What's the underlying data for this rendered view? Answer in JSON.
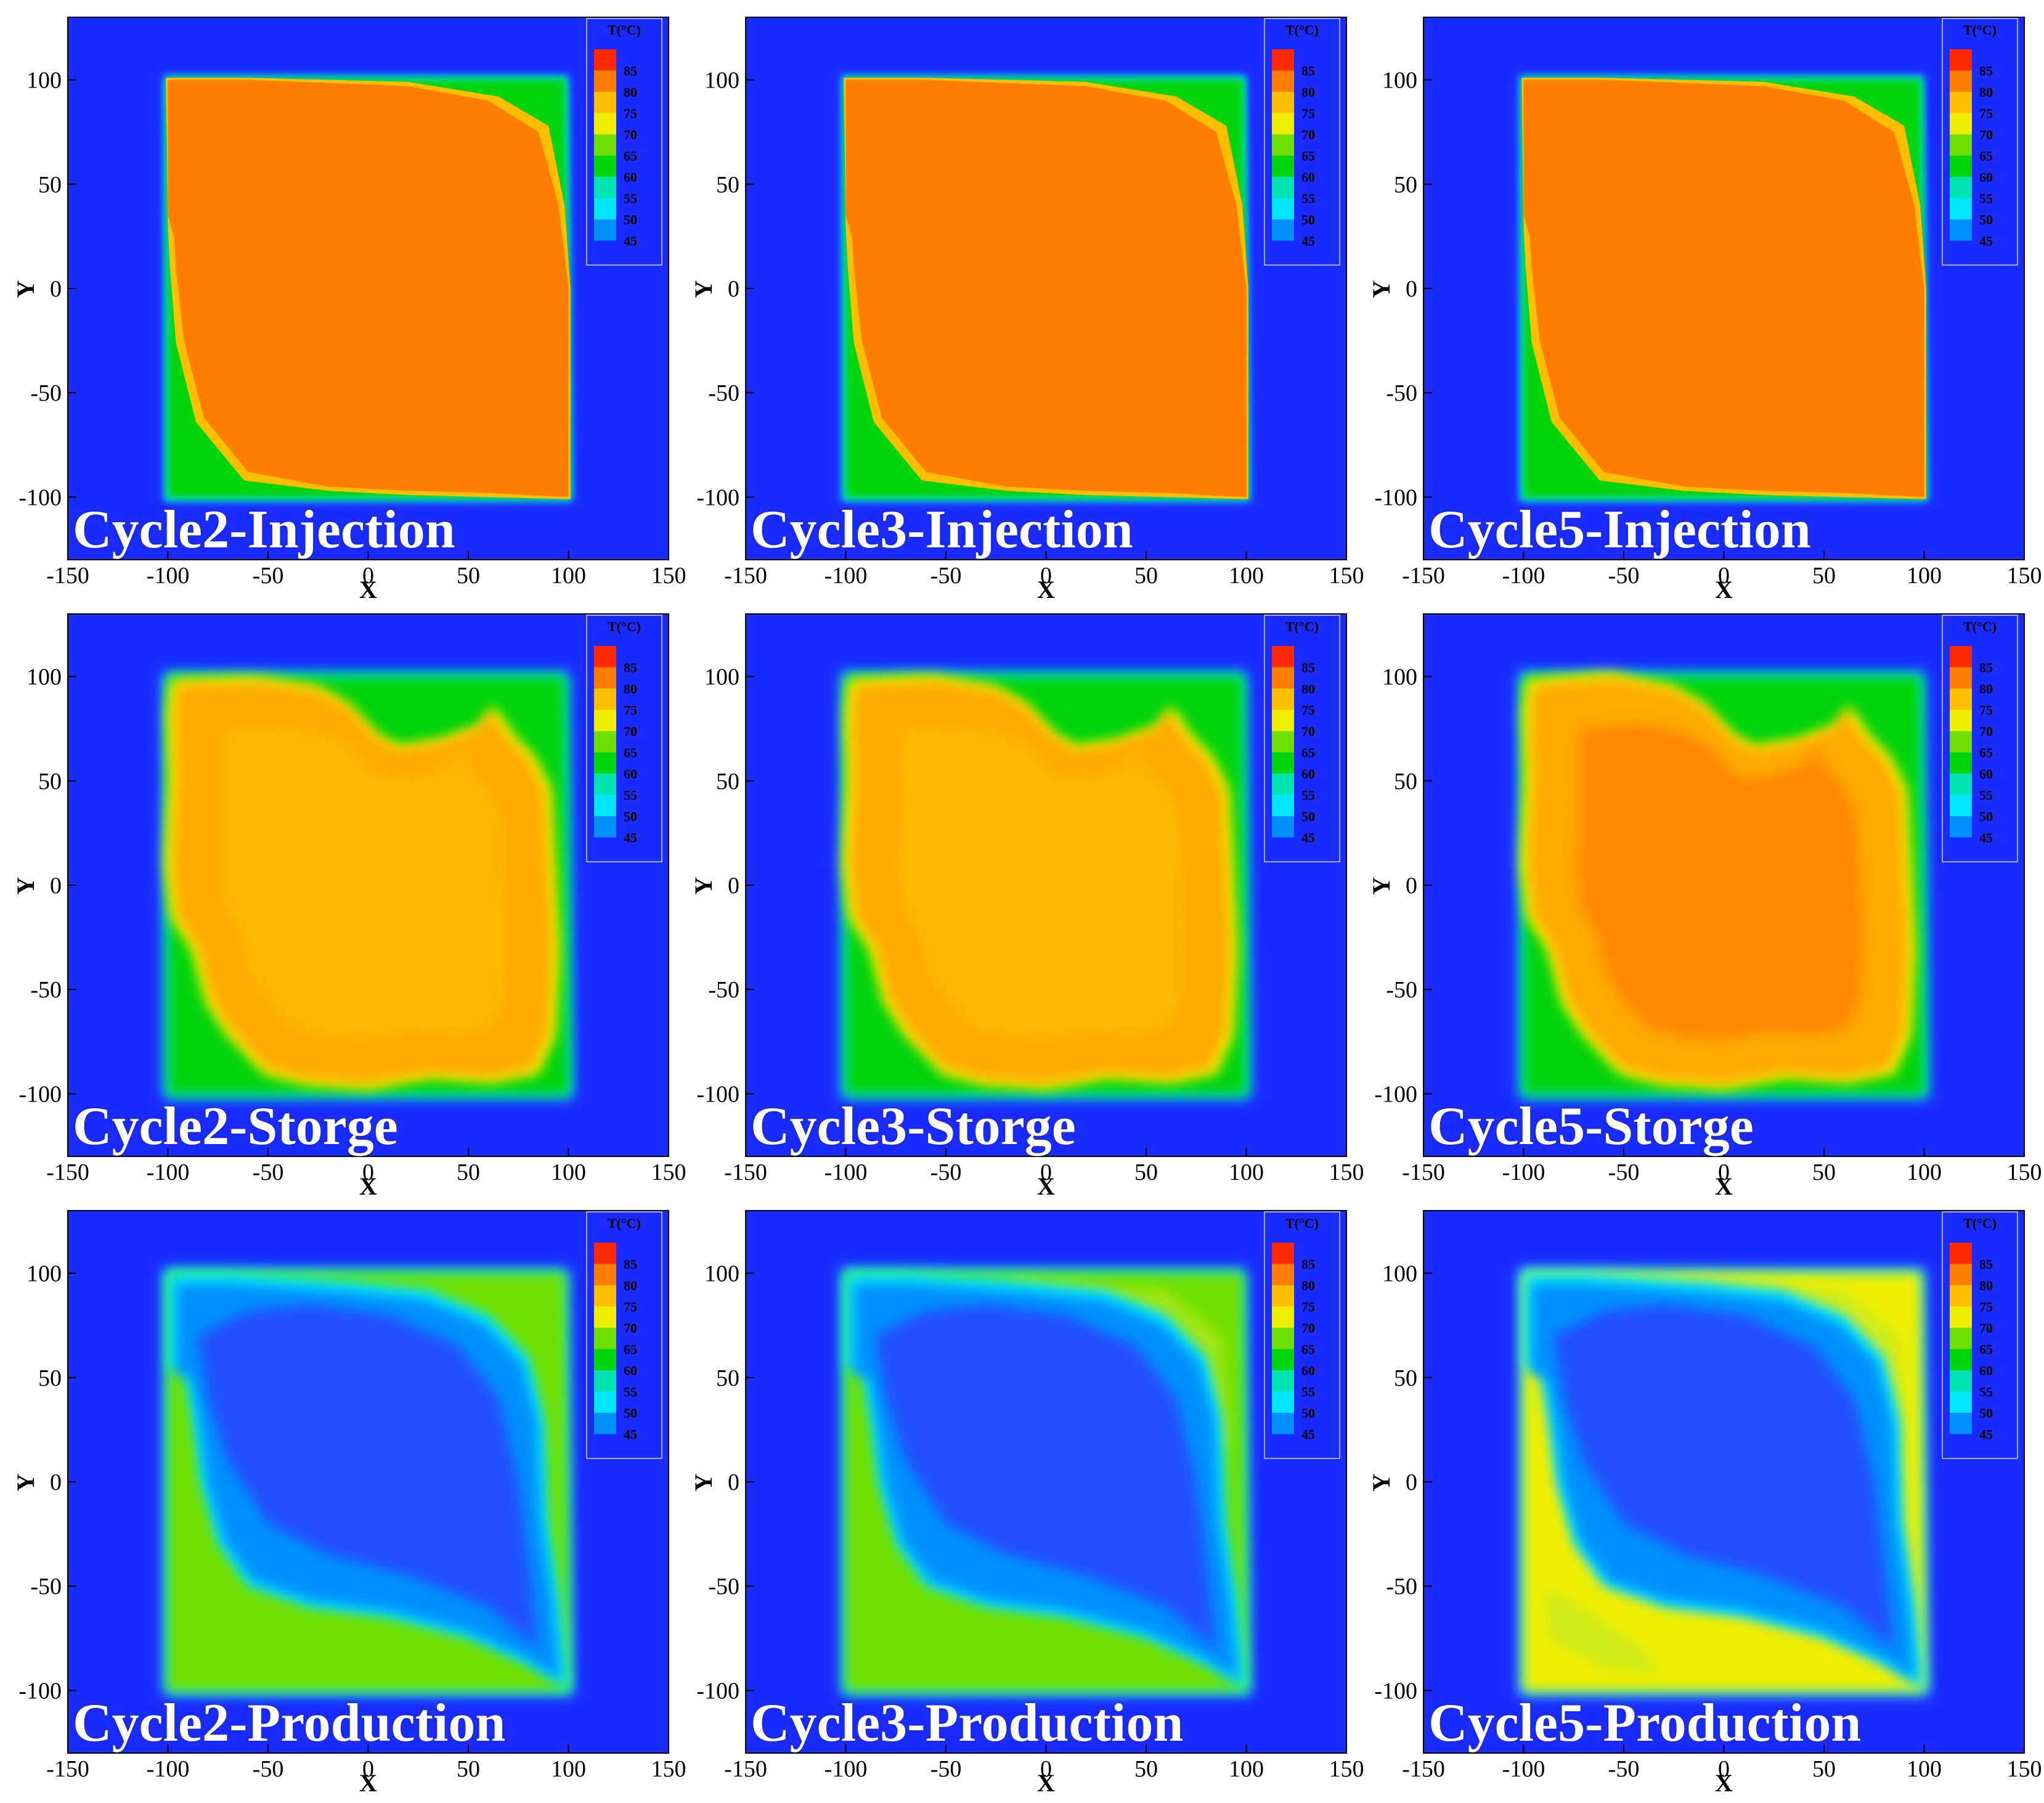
{
  "figure": {
    "xlabel": "X",
    "ylabel": "Y",
    "colorbar_title": "T(°C)",
    "colorbar_levels": [
      "85",
      "80",
      "75",
      "70",
      "65",
      "60",
      "55",
      "50",
      "45"
    ],
    "colorbar_colors": [
      "#ff2a00",
      "#ff7e00",
      "#ffbf00",
      "#f0ee00",
      "#6fe000",
      "#00d40a",
      "#00e3b0",
      "#00e8ff",
      "#0090ff",
      "#1a2bff"
    ]
  },
  "chart_data": [
    {
      "type": "heatmap",
      "title": "Cycle2-Injection",
      "cycle": 2,
      "stage": "Injection",
      "xlim": [
        -150,
        150
      ],
      "ylim": [
        -130,
        130
      ],
      "xticks": [
        -150,
        -100,
        -50,
        0,
        50,
        100,
        150
      ],
      "yticks": [
        -100,
        -50,
        0,
        50,
        100
      ],
      "xlabel": "X",
      "ylabel": "Y",
      "colorbar": {
        "title": "T(°C)",
        "min": 45,
        "max": 85,
        "step": 5
      },
      "background_temperature": 40,
      "hot_zone_temperature": 87
    },
    {
      "type": "heatmap",
      "title": "Cycle3-Injection",
      "cycle": 3,
      "stage": "Injection",
      "xlim": [
        -150,
        150
      ],
      "ylim": [
        -130,
        130
      ],
      "xticks": [
        -150,
        -100,
        -50,
        0,
        50,
        100,
        150
      ],
      "yticks": [
        -100,
        -50,
        0,
        50,
        100
      ],
      "xlabel": "X",
      "ylabel": "Y",
      "colorbar": {
        "title": "T(°C)",
        "min": 45,
        "max": 85,
        "step": 5
      },
      "background_temperature": 40,
      "hot_zone_temperature": 87
    },
    {
      "type": "heatmap",
      "title": "Cycle5-Injection",
      "cycle": 5,
      "stage": "Injection",
      "xlim": [
        -150,
        150
      ],
      "ylim": [
        -130,
        130
      ],
      "xticks": [
        -150,
        -100,
        -50,
        0,
        50,
        100,
        150
      ],
      "yticks": [
        -100,
        -50,
        0,
        50,
        100
      ],
      "xlabel": "X",
      "ylabel": "Y",
      "colorbar": {
        "title": "T(°C)",
        "min": 45,
        "max": 85,
        "step": 5
      },
      "background_temperature": 40,
      "hot_zone_temperature": 87
    },
    {
      "type": "heatmap",
      "title": "Cycle2-Storge",
      "cycle": 2,
      "stage": "Storge",
      "xlim": [
        -150,
        150
      ],
      "ylim": [
        -130,
        130
      ],
      "xticks": [
        -150,
        -100,
        -50,
        0,
        50,
        100,
        150
      ],
      "yticks": [
        -100,
        -50,
        0,
        50,
        100
      ],
      "xlabel": "X",
      "ylabel": "Y",
      "colorbar": {
        "title": "T(°C)",
        "min": 45,
        "max": 85,
        "step": 5
      },
      "background_temperature": 40,
      "core_temperature": 80
    },
    {
      "type": "heatmap",
      "title": "Cycle3-Storge",
      "cycle": 3,
      "stage": "Storge",
      "xlim": [
        -150,
        150
      ],
      "ylim": [
        -130,
        130
      ],
      "xticks": [
        -150,
        -100,
        -50,
        0,
        50,
        100,
        150
      ],
      "yticks": [
        -100,
        -50,
        0,
        50,
        100
      ],
      "xlabel": "X",
      "ylabel": "Y",
      "colorbar": {
        "title": "T(°C)",
        "min": 45,
        "max": 85,
        "step": 5
      },
      "background_temperature": 40,
      "core_temperature": 81
    },
    {
      "type": "heatmap",
      "title": "Cycle5-Storge",
      "cycle": 5,
      "stage": "Storge",
      "xlim": [
        -150,
        150
      ],
      "ylim": [
        -130,
        130
      ],
      "xticks": [
        -150,
        -100,
        -50,
        0,
        50,
        100,
        150
      ],
      "yticks": [
        -100,
        -50,
        0,
        50,
        100
      ],
      "xlabel": "X",
      "ylabel": "Y",
      "colorbar": {
        "title": "T(°C)",
        "min": 45,
        "max": 85,
        "step": 5
      },
      "background_temperature": 40,
      "core_temperature": 83
    },
    {
      "type": "heatmap",
      "title": "Cycle2-Production",
      "cycle": 2,
      "stage": "Production",
      "xlim": [
        -150,
        150
      ],
      "ylim": [
        -130,
        130
      ],
      "xticks": [
        -150,
        -100,
        -50,
        0,
        50,
        100,
        150
      ],
      "yticks": [
        -100,
        -50,
        0,
        50,
        100
      ],
      "xlabel": "X",
      "ylabel": "Y",
      "colorbar": {
        "title": "T(°C)",
        "min": 45,
        "max": 85,
        "step": 5
      },
      "background_temperature": 40,
      "core_temperature": 47,
      "edge_temperature": 66
    },
    {
      "type": "heatmap",
      "title": "Cycle3-Production",
      "cycle": 3,
      "stage": "Production",
      "xlim": [
        -150,
        150
      ],
      "ylim": [
        -130,
        130
      ],
      "xticks": [
        -150,
        -100,
        -50,
        0,
        50,
        100,
        150
      ],
      "yticks": [
        -100,
        -50,
        0,
        50,
        100
      ],
      "xlabel": "X",
      "ylabel": "Y",
      "colorbar": {
        "title": "T(°C)",
        "min": 45,
        "max": 85,
        "step": 5
      },
      "background_temperature": 40,
      "core_temperature": 47,
      "edge_temperature": 68
    },
    {
      "type": "heatmap",
      "title": "Cycle5-Production",
      "cycle": 5,
      "stage": "Production",
      "xlim": [
        -150,
        150
      ],
      "ylim": [
        -130,
        130
      ],
      "xticks": [
        -150,
        -100,
        -50,
        0,
        50,
        100,
        150
      ],
      "yticks": [
        -100,
        -50,
        0,
        50,
        100
      ],
      "xlabel": "X",
      "ylabel": "Y",
      "colorbar": {
        "title": "T(°C)",
        "min": 45,
        "max": 85,
        "step": 5
      },
      "background_temperature": 40,
      "core_temperature": 47,
      "edge_temperature": 71
    }
  ]
}
